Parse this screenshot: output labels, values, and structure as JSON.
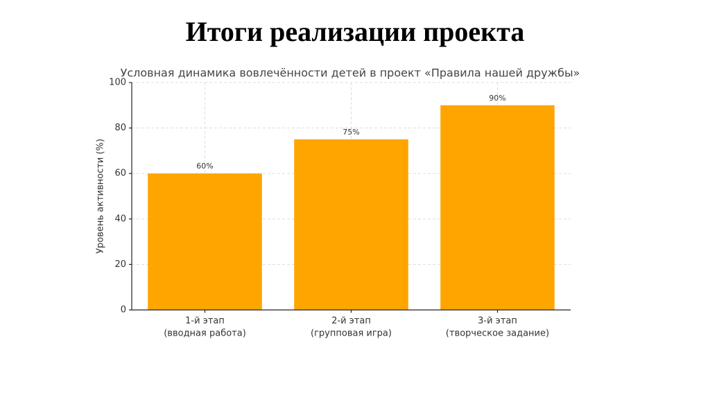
{
  "header": {
    "title": "Итоги реализации проекта"
  },
  "chart_data": {
    "type": "bar",
    "title": "Условная динамика вовлечённости детей в проект «Правила нашей дружбы»",
    "y_label": "Уровень активности (%)",
    "categories": [
      [
        "1-й этап",
        "(вводная работа)"
      ],
      [
        "2-й этап",
        "(групповая игра)"
      ],
      [
        "3-й этап",
        "(творческое задание)"
      ]
    ],
    "values": [
      60,
      75,
      90
    ],
    "value_labels": [
      "60%",
      "75%",
      "90%"
    ],
    "color": "#ffa500",
    "ylim": [
      0,
      100
    ],
    "yticks": [
      0,
      20,
      40,
      60,
      80,
      100
    ],
    "grid": true
  }
}
